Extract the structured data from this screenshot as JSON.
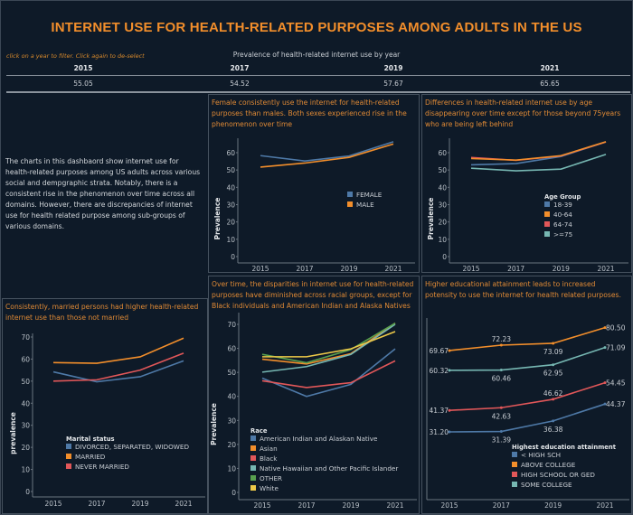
{
  "header": {
    "title": "INTERNET USE FOR HEALTH-RELATED PURPOSES AMONG ADULTS IN THE US",
    "filter_hint": "click on a year to filter. Click again to de-select",
    "subtitle": "Prevalence of health-related internet use by year",
    "years": [
      {
        "year": "2015",
        "value": "55.05"
      },
      {
        "year": "2017",
        "value": "54.52"
      },
      {
        "year": "2019",
        "value": "57.67"
      },
      {
        "year": "2021",
        "value": "65.65"
      }
    ]
  },
  "intro_text": "The charts in this dashbaord show internet use for health-related purposes among US adults across various social and dempgraphic strata. Notably, there is a consistent rise in the phenomenon over time across all domains. However, there are discrepancies of internet use for health related purpose among sub-groups of various domains.",
  "chart_data": [
    {
      "id": "gender",
      "type": "line",
      "title": "Female consistently use the internet for health-related purposes than males. Both sexes experienced rise in the phenomenon over time",
      "ylabel": "Prevalence",
      "xlabel": "",
      "legend_title": "",
      "x": [
        "2015",
        "2017",
        "2019",
        "2021"
      ],
      "yticks": [
        0,
        10,
        20,
        30,
        40,
        50,
        60
      ],
      "ylim": [
        0,
        68
      ],
      "series": [
        {
          "name": "FEMALE",
          "color": "#4e79a7",
          "values": [
            58.3,
            55.2,
            58.1,
            66.3
          ]
        },
        {
          "name": "MALE",
          "color": "#f28e2b",
          "values": [
            51.7,
            54.0,
            57.3,
            65.0
          ]
        }
      ]
    },
    {
      "id": "age",
      "type": "line",
      "title": "Differences in health-related internet use by age disappearing over time except for those beyond 75years who are being left behind",
      "ylabel": "Prevalence",
      "xlabel": "",
      "legend_title": "Age Group",
      "x": [
        "2015",
        "2017",
        "2019",
        "2021"
      ],
      "yticks": [
        0,
        10,
        20,
        30,
        40,
        50,
        60
      ],
      "ylim": [
        0,
        68
      ],
      "series": [
        {
          "name": "18-39",
          "color": "#4e79a7",
          "values": [
            53.0,
            53.7,
            57.8,
            66.2
          ]
        },
        {
          "name": "64-74",
          "color": "#e15759",
          "values": [
            57.2,
            55.6,
            58.1,
            66.2
          ]
        },
        {
          "name": "40-64",
          "color": "#f28e2b",
          "values": [
            56.6,
            55.7,
            58.3,
            66.3
          ]
        },
        {
          "name": ">=75",
          "color": "#76b7b2",
          "values": [
            51.0,
            49.5,
            50.5,
            59.0
          ]
        }
      ],
      "legend_order": [
        "18-39",
        "40-64",
        "64-74",
        ">=75"
      ]
    },
    {
      "id": "marital",
      "type": "line",
      "title": "Consistently, married persons had higher health-related internet use than those not married",
      "ylabel": "prevalence",
      "xlabel": "",
      "legend_title": "Marital status",
      "x": [
        "2015",
        "2017",
        "2019",
        "2021"
      ],
      "yticks": [
        0,
        10,
        20,
        30,
        40,
        50,
        60,
        70
      ],
      "ylim": [
        0,
        72
      ],
      "series": [
        {
          "name": "DIVORCED, SEPARATED, WIDOWED",
          "color": "#4e79a7",
          "values": [
            54.2,
            49.7,
            52.0,
            59.2
          ]
        },
        {
          "name": "MARRIED",
          "color": "#f28e2b",
          "values": [
            58.4,
            58.1,
            61.0,
            69.5
          ]
        },
        {
          "name": "NEVER MARRIED",
          "color": "#e15759",
          "values": [
            50.0,
            50.6,
            55.0,
            62.7
          ]
        }
      ]
    },
    {
      "id": "race",
      "type": "line",
      "title": "Over time, the disparities in internet use for health-related purposes have diminished across racial groups, except for Black individuals and American Indian and Alaska Natives",
      "ylabel": "Prevalence",
      "xlabel": "",
      "legend_title": "Race",
      "x": [
        "2015",
        "2017",
        "2019",
        "2021"
      ],
      "yticks": [
        0,
        10,
        20,
        30,
        40,
        50,
        60,
        70
      ],
      "ylim": [
        0,
        72
      ],
      "series": [
        {
          "name": "American Indian and Alaskan Native",
          "color": "#4e79a7",
          "values": [
            47.6,
            40.0,
            45.0,
            59.8
          ]
        },
        {
          "name": "Asian",
          "color": "#f28e2b",
          "values": [
            55.5,
            53.5,
            57.8,
            70.5
          ]
        },
        {
          "name": "Black",
          "color": "#e15759",
          "values": [
            46.5,
            43.7,
            45.7,
            54.8
          ]
        },
        {
          "name": "Native Hawaiian and Other Pacific Islander",
          "color": "#76b7b2",
          "values": [
            50.1,
            52.4,
            57.5,
            70.0
          ]
        },
        {
          "name": "OTHER",
          "color": "#59a14f",
          "values": [
            57.5,
            54.0,
            59.5,
            70.5
          ]
        },
        {
          "name": "White",
          "color": "#edc948",
          "values": [
            56.5,
            56.5,
            59.8,
            67.0
          ]
        }
      ]
    },
    {
      "id": "education",
      "type": "line",
      "title": "Higher educational attainment leads to increased potensity to use the internet for health related purposes.",
      "ylabel": "",
      "xlabel": "",
      "legend_title": "Highest education attainment",
      "x": [
        "2015",
        "2017",
        "2019",
        "2021"
      ],
      "yticks": [],
      "data_labels": true,
      "series": [
        {
          "name": "< HIGH SCH",
          "color": "#4e79a7",
          "values": [
            31.2,
            31.39,
            36.38,
            44.37
          ]
        },
        {
          "name": "ABOVE COLLEGE",
          "color": "#f28e2b",
          "values": [
            69.67,
            72.23,
            73.09,
            80.5
          ]
        },
        {
          "name": "HIGH SCHOOL OR GED",
          "color": "#e15759",
          "values": [
            41.37,
            42.63,
            46.62,
            54.45
          ]
        },
        {
          "name": "SOME COLLEGE",
          "color": "#76b7b2",
          "values": [
            60.32,
            60.46,
            62.95,
            71.09
          ]
        }
      ]
    }
  ]
}
